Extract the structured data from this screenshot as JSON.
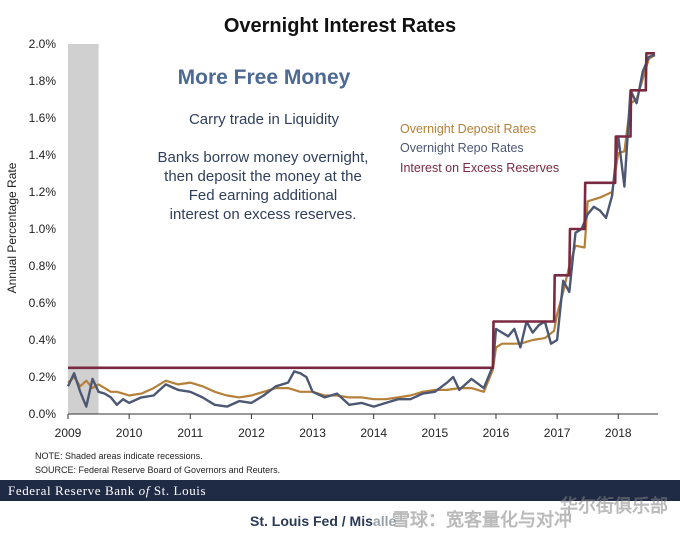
{
  "chart_data": {
    "type": "line",
    "title": "Overnight Interest Rates",
    "ylabel": "Annual Percentage Rate",
    "xlabel": "",
    "ylim": [
      0,
      2.0
    ],
    "xlim": [
      2009.0,
      2018.65
    ],
    "y_ticks": [
      "0.0%",
      "0.2%",
      "0.4%",
      "0.6%",
      "0.8%",
      "1.0%",
      "1.2%",
      "1.4%",
      "1.6%",
      "1.8%",
      "2.0%"
    ],
    "x_ticks": [
      "2009",
      "2010",
      "2011",
      "2012",
      "2013",
      "2014",
      "2015",
      "2016",
      "2017",
      "2018"
    ],
    "recession_shading": [
      2009.0,
      2009.5
    ],
    "legend_position": "top-right",
    "annotations": {
      "headline": "More Free Money",
      "subhead": "Carry trade in Liquidity",
      "body": "Banks borrow money overnight, then deposit the money at the Fed earning additional interest on excess reserves."
    },
    "series": [
      {
        "name": "Overnight Deposit Rates",
        "color": "#b5803a",
        "x": [
          2009.0,
          2009.1,
          2009.2,
          2009.3,
          2009.4,
          2009.5,
          2009.6,
          2009.7,
          2009.8,
          2009.9,
          2010.0,
          2010.2,
          2010.4,
          2010.6,
          2010.8,
          2011.0,
          2011.2,
          2011.4,
          2011.6,
          2011.8,
          2012.0,
          2012.2,
          2012.4,
          2012.6,
          2012.8,
          2013.0,
          2013.2,
          2013.4,
          2013.6,
          2013.8,
          2014.0,
          2014.2,
          2014.4,
          2014.6,
          2014.8,
          2015.0,
          2015.2,
          2015.4,
          2015.6,
          2015.8,
          2015.95,
          2016.0,
          2016.1,
          2016.2,
          2016.4,
          2016.6,
          2016.8,
          2016.95,
          2017.0,
          2017.1,
          2017.2,
          2017.3,
          2017.45,
          2017.5,
          2017.7,
          2017.9,
          2018.0,
          2018.1,
          2018.2,
          2018.3,
          2018.5,
          2018.6
        ],
        "values": [
          0.17,
          0.2,
          0.15,
          0.18,
          0.14,
          0.16,
          0.14,
          0.12,
          0.12,
          0.11,
          0.1,
          0.11,
          0.14,
          0.18,
          0.16,
          0.17,
          0.15,
          0.12,
          0.1,
          0.09,
          0.1,
          0.12,
          0.14,
          0.14,
          0.12,
          0.12,
          0.1,
          0.1,
          0.09,
          0.09,
          0.08,
          0.08,
          0.09,
          0.1,
          0.12,
          0.13,
          0.13,
          0.14,
          0.14,
          0.12,
          0.24,
          0.36,
          0.38,
          0.38,
          0.38,
          0.4,
          0.41,
          0.45,
          0.54,
          0.66,
          0.8,
          0.91,
          0.9,
          1.15,
          1.17,
          1.2,
          1.41,
          1.42,
          1.68,
          1.7,
          1.92,
          1.94
        ]
      },
      {
        "name": "Overnight Repo Rates",
        "color": "#4c5873",
        "x": [
          2009.0,
          2009.1,
          2009.2,
          2009.3,
          2009.4,
          2009.5,
          2009.6,
          2009.7,
          2009.8,
          2009.9,
          2010.0,
          2010.2,
          2010.4,
          2010.6,
          2010.8,
          2011.0,
          2011.2,
          2011.4,
          2011.6,
          2011.8,
          2012.0,
          2012.2,
          2012.4,
          2012.6,
          2012.7,
          2012.8,
          2012.9,
          2013.0,
          2013.2,
          2013.4,
          2013.6,
          2013.8,
          2014.0,
          2014.2,
          2014.4,
          2014.6,
          2014.8,
          2015.0,
          2015.2,
          2015.3,
          2015.4,
          2015.6,
          2015.8,
          2015.95,
          2016.0,
          2016.1,
          2016.2,
          2016.3,
          2016.4,
          2016.5,
          2016.6,
          2016.7,
          2016.8,
          2016.9,
          2017.0,
          2017.1,
          2017.2,
          2017.3,
          2017.4,
          2017.5,
          2017.6,
          2017.7,
          2017.8,
          2017.9,
          2018.0,
          2018.1,
          2018.2,
          2018.3,
          2018.4,
          2018.5,
          2018.6
        ],
        "values": [
          0.15,
          0.22,
          0.12,
          0.04,
          0.19,
          0.12,
          0.11,
          0.09,
          0.05,
          0.08,
          0.06,
          0.09,
          0.1,
          0.16,
          0.13,
          0.12,
          0.09,
          0.05,
          0.04,
          0.07,
          0.06,
          0.1,
          0.15,
          0.17,
          0.23,
          0.22,
          0.2,
          0.12,
          0.09,
          0.11,
          0.05,
          0.06,
          0.04,
          0.06,
          0.08,
          0.08,
          0.11,
          0.12,
          0.17,
          0.2,
          0.13,
          0.19,
          0.14,
          0.26,
          0.46,
          0.44,
          0.42,
          0.46,
          0.36,
          0.5,
          0.44,
          0.48,
          0.5,
          0.38,
          0.4,
          0.72,
          0.66,
          0.98,
          1.0,
          1.08,
          1.12,
          1.1,
          1.06,
          1.18,
          1.5,
          1.23,
          1.75,
          1.68,
          1.85,
          1.93,
          1.94
        ]
      },
      {
        "name": "Interest on Excess Reserves",
        "color": "#7a2a40",
        "x": [
          2009.0,
          2015.95,
          2015.96,
          2016.95,
          2016.96,
          2017.2,
          2017.21,
          2017.45,
          2017.46,
          2017.95,
          2017.96,
          2018.2,
          2018.21,
          2018.45,
          2018.46,
          2018.6
        ],
        "values": [
          0.25,
          0.25,
          0.5,
          0.5,
          0.75,
          0.75,
          1.0,
          1.0,
          1.25,
          1.25,
          1.5,
          1.5,
          1.75,
          1.75,
          1.95,
          1.95
        ]
      }
    ]
  },
  "notes": {
    "shaded": "NOTE: Shaded areas indicate recessions.",
    "source": "SOURCE: Federal Reserve Board of Governors and Reuters."
  },
  "footer": {
    "bank_pre": "Federal Reserve Bank ",
    "bank_of": "of",
    "bank_post": " St. Louis",
    "credit": "St. Louis Fed / Mis",
    "credit_tail": "alle"
  },
  "watermark": {
    "line1": "雪球：宽客量化与对冲",
    "line2": "华尔街俱乐部"
  }
}
